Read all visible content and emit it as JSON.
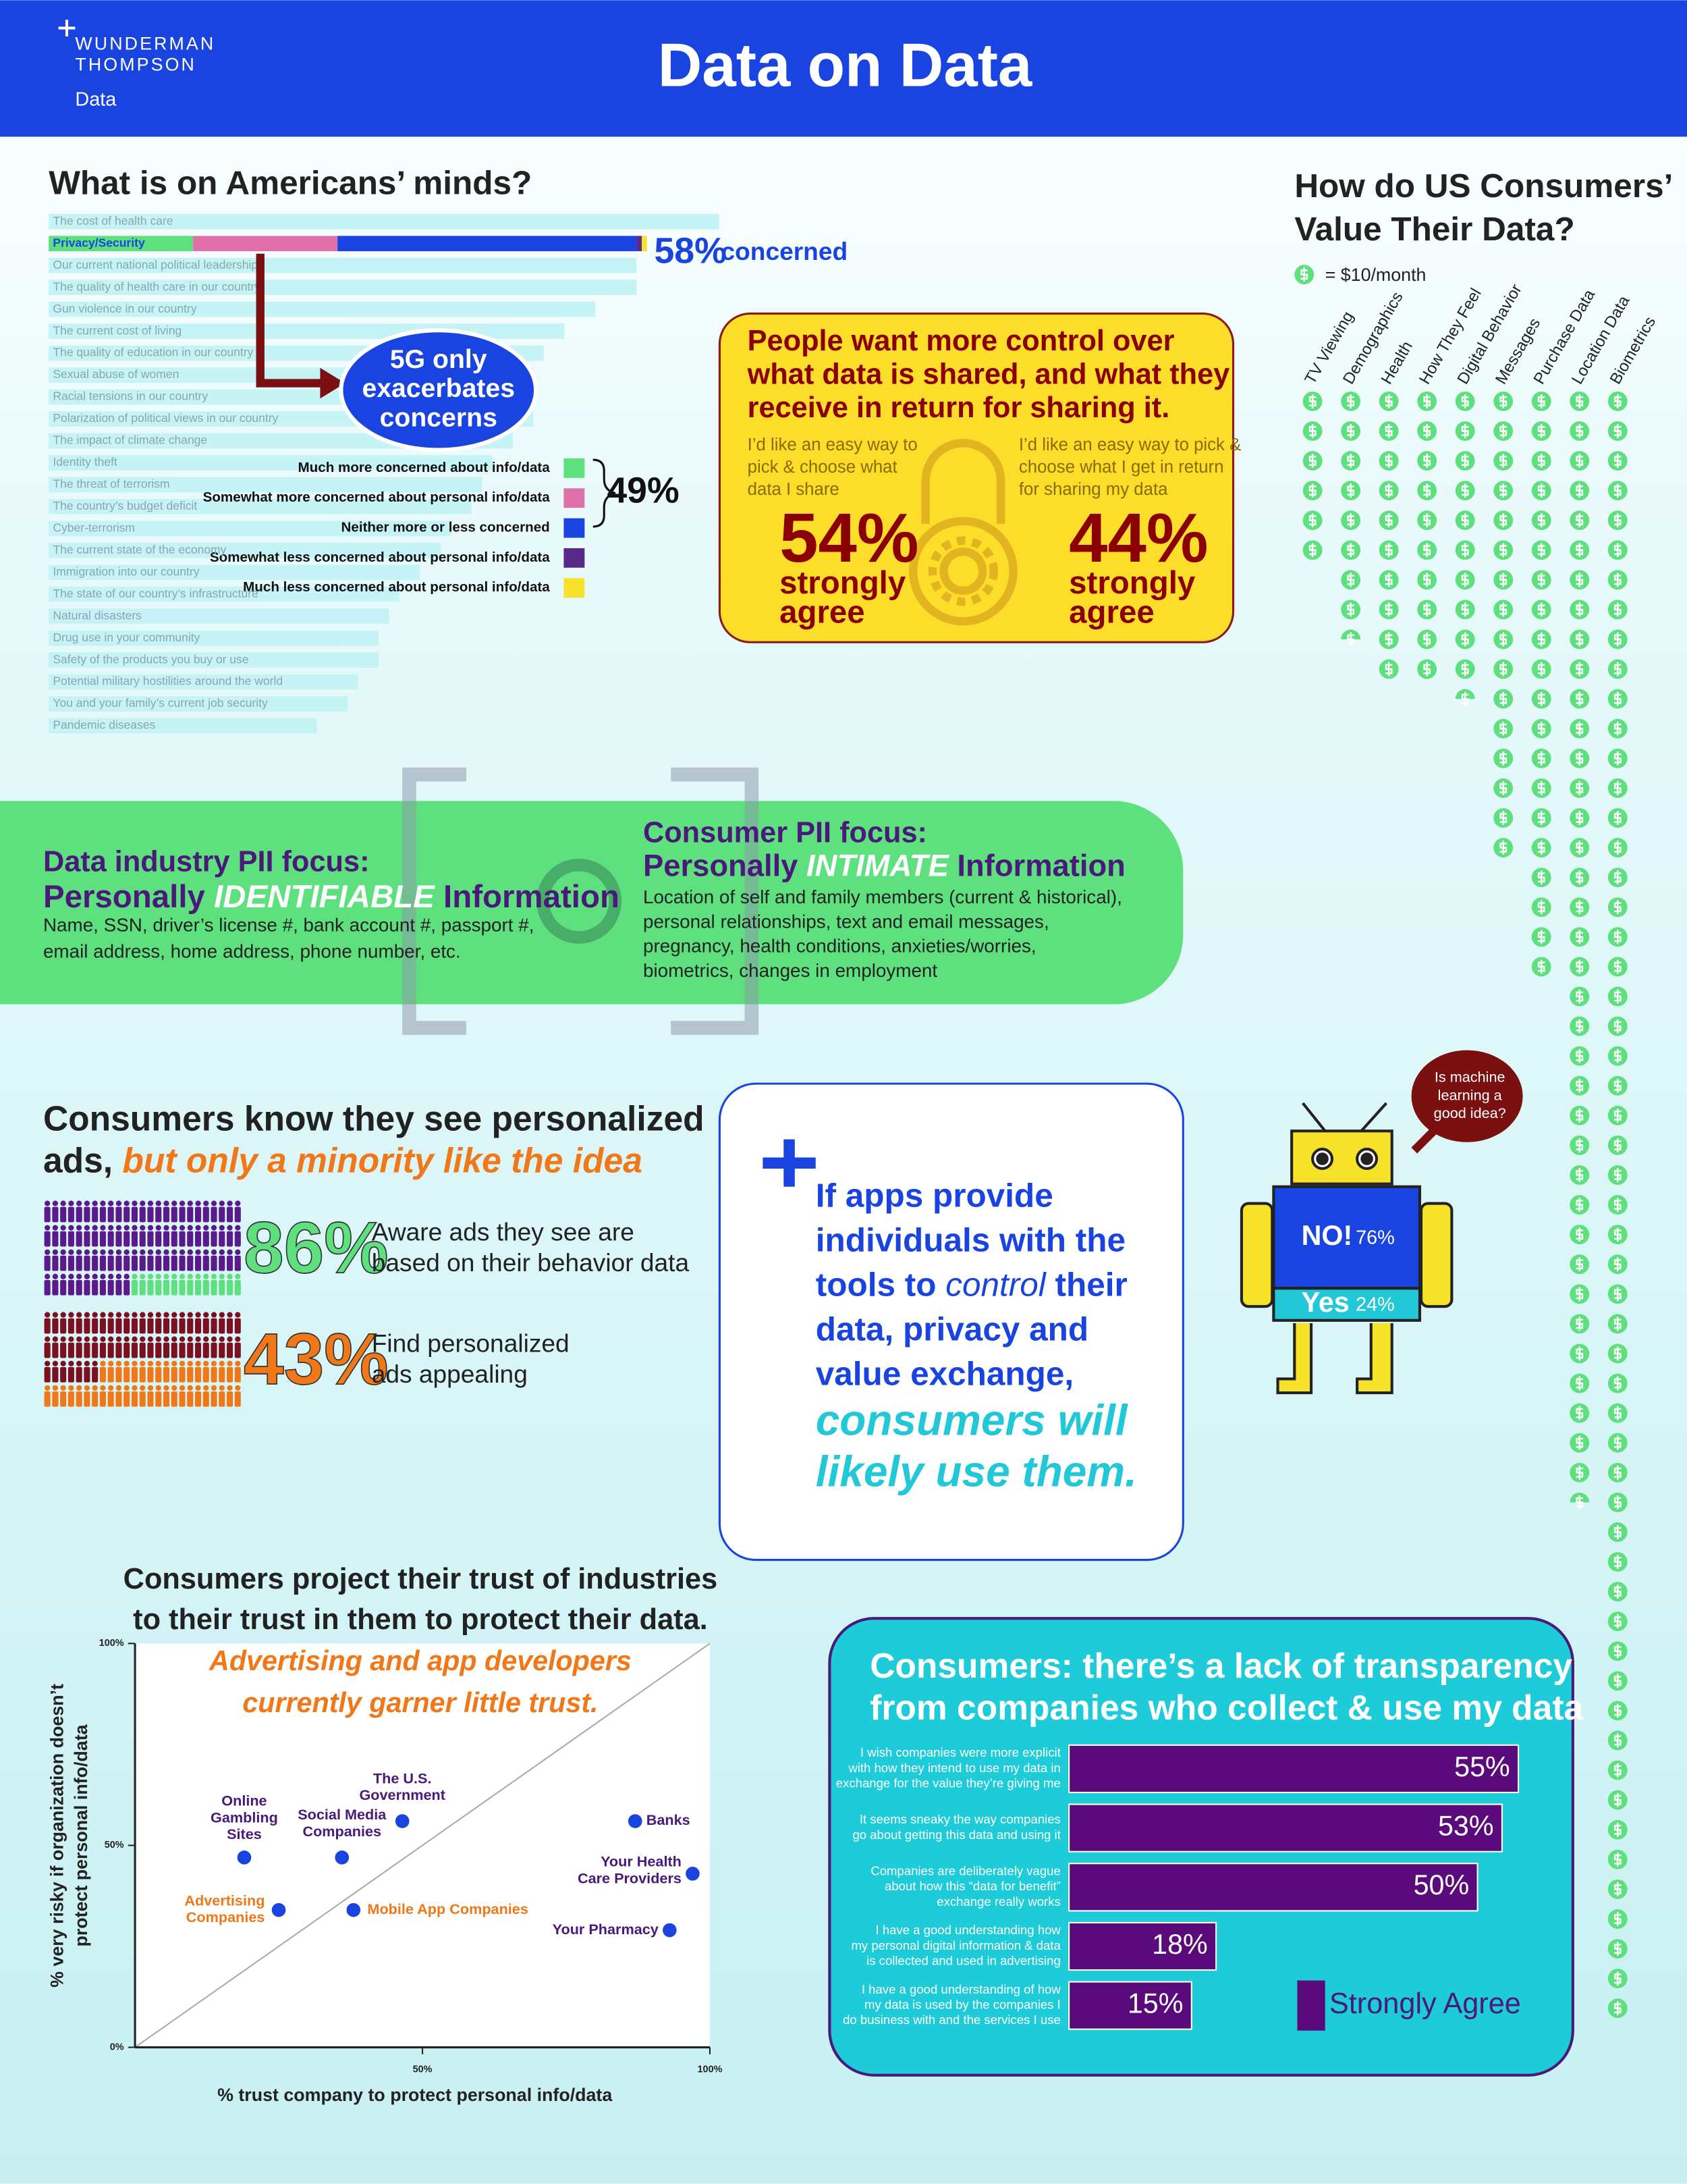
{
  "header": {
    "logo": [
      "WUNDERMAN",
      "THOMPSON"
    ],
    "logo_sub": "Data",
    "title": "Data on Data"
  },
  "concerns": {
    "type": "bar",
    "title": "What is on Americans’ minds?",
    "categories": [
      "The cost of health care",
      "Privacy/Security",
      "Our current national political leadership",
      "The quality of health care in our country",
      "Gun violence in our country",
      "The current cost of living",
      "The quality of education in our country",
      "Sexual abuse of women",
      "Racial tensions in our country",
      "Polarization of political views in our country",
      "The impact of climate change",
      "Identity theft",
      "The threat of terrorism",
      "The country’s budget deficit",
      "Cyber-terrorism",
      "The current state of the economy",
      "Immigration into our country",
      "The state of our country’s infrastructure",
      "Natural disasters",
      "Drug use in your community",
      "Safety of the products you buy or use",
      "Potential military hostilities around the world",
      "You and your family’s current job security",
      "Pandemic diseases"
    ],
    "values": [
      65,
      58,
      57,
      57,
      53,
      50,
      48,
      47,
      47,
      47,
      45,
      43,
      42,
      41,
      39,
      38,
      36,
      34,
      33,
      32,
      32,
      30,
      29,
      26
    ],
    "value_labels": [
      null,
      "58%",
      null,
      null,
      null,
      null,
      null,
      null,
      null,
      null,
      null,
      null,
      null,
      null,
      null,
      null,
      null,
      null,
      null,
      null,
      null,
      null,
      null,
      null
    ],
    "total_caption": "concerned",
    "breakdown": {
      "series": [
        {
          "name": "Much more concerned about info/data",
          "color": "#5ee07f",
          "value": 14
        },
        {
          "name": "Somewhat more concerned about personal info/data",
          "color": "#e070a8",
          "value": 14
        },
        {
          "name": "Neither more or less concerned",
          "color": "#1a44e0",
          "value": 29
        },
        {
          "name": "Somewhat less concerned about personal info/data",
          "color": "#5a2a8a",
          "value": 0.5
        },
        {
          "name": "Much less concerned about personal info/data",
          "color": "#f7e22a",
          "value": 0.5
        }
      ],
      "bracket": {
        "value": 49,
        "value_label": "49%"
      }
    },
    "callout": [
      "5G only",
      "exacerbates",
      "concerns"
    ]
  },
  "control": {
    "heading": [
      "People want more control over",
      "what data is shared, and what they",
      "receive in return for sharing it."
    ],
    "items": [
      {
        "text": [
          "I’d like an easy way to",
          "pick & choose what",
          "data I share"
        ],
        "value": 54,
        "value_label": "54%",
        "caption": [
          "strongly",
          "agree"
        ]
      },
      {
        "text": [
          "I’d like an easy way to pick &",
          "choose what I get in return",
          "for sharing my data"
        ],
        "value": 44,
        "value_label": "44%",
        "caption": [
          "strongly",
          "agree"
        ]
      }
    ]
  },
  "value_chart": {
    "type": "pictograph",
    "title": [
      "How do US Consumers’",
      "Value Their Data?"
    ],
    "legend": "= $10/month",
    "unit": 10,
    "color": "#5ee07f",
    "categories": [
      "TV Viewing",
      "Demographics",
      "Health",
      "How They Feel",
      "Digital Behavior",
      "Messages",
      "Purchase Data",
      "Location Data",
      "Biometrics"
    ],
    "values": [
      60,
      85,
      100,
      100,
      105,
      160,
      200,
      375,
      550
    ]
  },
  "pii": {
    "left": {
      "title": "Data industry PII focus:",
      "subtitle": [
        "Personally ",
        "IDENTIFIABLE",
        " Information"
      ],
      "body": [
        "Name, SSN, driver’s license #, bank account #, passport #,",
        "email address, home address, phone number, etc."
      ]
    },
    "right": {
      "title": "Consumer PII focus:",
      "subtitle": [
        "Personally ",
        "INTIMATE",
        " Information"
      ],
      "body": [
        "Location of self and family members (current & historical),",
        "personal relationships, text and email messages,",
        "pregnancy, health conditions, anxieties/worries,",
        "biometrics, changes in employment"
      ]
    }
  },
  "ads": {
    "title": [
      "Consumers know they see personalized",
      "ads, ",
      "but only a minority like the idea"
    ],
    "stats": [
      {
        "value": 86,
        "value_label": "86%",
        "color": "#5a1a8a",
        "other_color": "#5ee07f",
        "label_color": "#5ee07f",
        "text": [
          "Aware ads they see are",
          "based on their behavior data"
        ]
      },
      {
        "value": 43,
        "value_label": "43%",
        "color": "#f07818",
        "other_color": "#7a1020",
        "label_color": "#f07818",
        "text": [
          "Find personalized",
          "ads appealing"
        ]
      }
    ]
  },
  "apps": {
    "lines": [
      "If apps provide",
      "individuals with the",
      [
        "tools to ",
        "control",
        " their"
      ],
      "data, privacy and",
      "value exchange,"
    ],
    "emphasis": [
      "consumers will",
      "likely use them."
    ]
  },
  "robot": {
    "question": [
      "Is machine",
      "learning a",
      "good idea?"
    ],
    "answers": [
      {
        "label": "NO!",
        "value": 76,
        "value_label": "76%",
        "color": "#1a44e0"
      },
      {
        "label": "Yes",
        "value": 24,
        "value_label": "24%",
        "color": "#22c8d8"
      }
    ]
  },
  "trust": {
    "type": "scatter",
    "title": [
      "Consumers project their trust of industries",
      "to their trust in them to protect their data."
    ],
    "annotation": [
      "Advertising and app developers",
      "currently garner little trust."
    ],
    "x_label": "% trust company to protect personal info/data",
    "y_label": [
      "% very risky if organization doesn’t",
      "protect personal info/data"
    ],
    "xlim": [
      0,
      100
    ],
    "ylim": [
      0,
      100
    ],
    "xticks": [
      {
        "value": 50,
        "label": "50%"
      },
      {
        "value": 100,
        "label": "100%"
      }
    ],
    "yticks": [
      {
        "value": 0,
        "label": "0%"
      },
      {
        "value": 50,
        "label": "50%"
      },
      {
        "value": 100,
        "label": "100%"
      }
    ],
    "color": "#1a44e0",
    "points": [
      {
        "label": [
          "Online",
          "Gambling",
          "Sites"
        ],
        "x": 19,
        "y": 47,
        "label_color": "#4a1a7a"
      },
      {
        "label": [
          "Social Media",
          "Companies"
        ],
        "x": 36,
        "y": 47,
        "label_color": "#4a1a7a"
      },
      {
        "label": [
          "The U.S.",
          "Government"
        ],
        "x": 46.5,
        "y": 56,
        "label_color": "#4a1a7a"
      },
      {
        "label": [
          "Banks"
        ],
        "x": 87,
        "y": 56,
        "label_color": "#4a1a7a"
      },
      {
        "label": [
          "Your Health",
          "Care Providers"
        ],
        "x": 97,
        "y": 43,
        "label_color": "#4a1a7a"
      },
      {
        "label": [
          "Advertising",
          "Companies"
        ],
        "x": 25,
        "y": 34,
        "label_color": "#f07818"
      },
      {
        "label": [
          "Mobile App Companies"
        ],
        "x": 38,
        "y": 34,
        "label_color": "#f07818"
      },
      {
        "label": [
          "Your Pharmacy"
        ],
        "x": 93,
        "y": 29,
        "label_color": "#4a1a7a"
      }
    ]
  },
  "transparency": {
    "type": "bar",
    "title": [
      "Consumers: there’s a lack of transparency",
      "from companies who collect & use my data"
    ],
    "categories": [
      [
        "I wish companies were more explicit",
        "with how they intend to use my data in",
        "exchange for the value they’re giving me"
      ],
      [
        "It seems sneaky the way companies",
        "go about getting this data and using it"
      ],
      [
        "Companies are deliberately vague",
        "about how this “data for benefit”",
        "exchange really works"
      ],
      [
        "I have a good understanding how",
        "my personal digital information & data",
        "is collected and used in advertising"
      ],
      [
        "I have a good understanding of how",
        "my data is used by the companies I",
        "do business with and the services I use"
      ]
    ],
    "values": [
      55,
      53,
      50,
      18,
      15
    ],
    "value_labels": [
      "55%",
      "53%",
      "50%",
      "18%",
      "15%"
    ],
    "color": "#5a0a7a",
    "legend": "Strongly Agree"
  }
}
